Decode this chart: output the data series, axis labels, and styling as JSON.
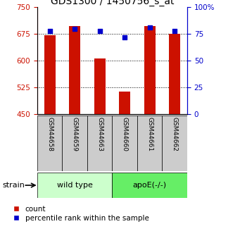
{
  "title": "GDS1300 / 1450756_s_at",
  "samples": [
    "GSM44658",
    "GSM44659",
    "GSM44663",
    "GSM44660",
    "GSM44661",
    "GSM44662"
  ],
  "counts": [
    672,
    697,
    607,
    513,
    698,
    675
  ],
  "percentiles": [
    78,
    80,
    78,
    72,
    81,
    78
  ],
  "ymin": 450,
  "ymax": 750,
  "yticks": [
    450,
    525,
    600,
    675,
    750
  ],
  "y2min": 0,
  "y2max": 100,
  "y2ticks": [
    0,
    25,
    50,
    75,
    100
  ],
  "bar_color": "#cc1100",
  "dot_color": "#0000cc",
  "bar_width": 0.45,
  "wildtype_color": "#ccffcc",
  "apoe_color": "#66ee66",
  "gray_box_color": "#cccccc",
  "left_axis_color": "#cc1100",
  "right_axis_color": "#0000cc",
  "title_fontsize": 10,
  "tick_fontsize": 7.5,
  "sample_fontsize": 6.5,
  "group_fontsize": 8,
  "legend_fontsize": 7.5
}
